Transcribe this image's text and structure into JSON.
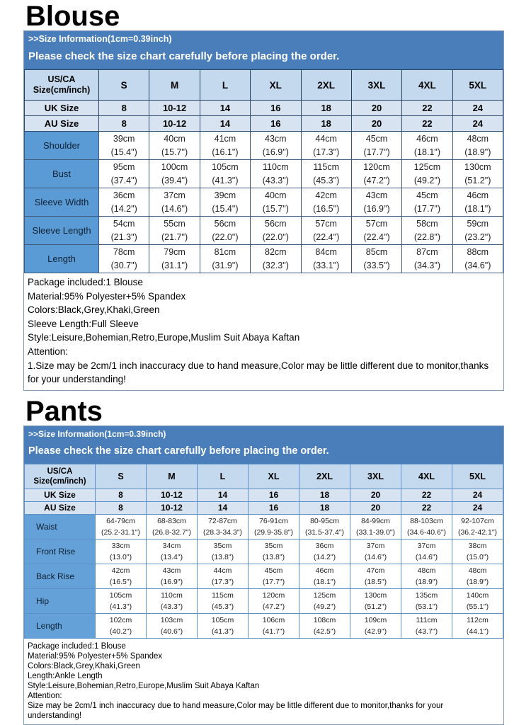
{
  "colors": {
    "banner_bg": "#4a7ebb",
    "banner_text": "#ffffff",
    "header_cell_bg": "#c5d9ee",
    "size_row_bg": "#d7e3f1",
    "label_cell_bg": "#5b9bd5",
    "label_cell_pants_bg": "#63a1d8"
  },
  "sections": [
    {
      "id": "blouse",
      "title": "Blouse",
      "banner": {
        "line1": ">>Size Information(1cm=0.39inch)",
        "line2": "Please check the size chart carefully before placing the order."
      },
      "table": {
        "corner": [
          "US/CA",
          "Size(cm/inch)"
        ],
        "sizes": [
          "S",
          "M",
          "L",
          "XL",
          "2XL",
          "3XL",
          "4XL",
          "5XL"
        ],
        "size_rows": [
          {
            "label": "UK Size",
            "values": [
              "8",
              "10-12",
              "14",
              "16",
              "18",
              "20",
              "22",
              "24"
            ]
          },
          {
            "label": "AU Size",
            "values": [
              "8",
              "10-12",
              "14",
              "16",
              "18",
              "20",
              "22",
              "24"
            ]
          }
        ],
        "measure_rows": [
          {
            "label": "Shoulder",
            "cm": [
              "39cm",
              "40cm",
              "41cm",
              "43cm",
              "44cm",
              "45cm",
              "46cm",
              "48cm"
            ],
            "inch": [
              "(15.4\")",
              "(15.7\")",
              "(16.1\")",
              "(16.9\")",
              "(17.3\")",
              "(17.7\")",
              "(18.1\")",
              "(18.9\")"
            ]
          },
          {
            "label": "Bust",
            "cm": [
              "95cm",
              "100cm",
              "105cm",
              "110cm",
              "115cm",
              "120cm",
              "125cm",
              "130cm"
            ],
            "inch": [
              "(37.4\")",
              "(39.4\")",
              "(41.3\")",
              "(43.3\")",
              "(45.3\")",
              "(47.2\")",
              "(49.2\")",
              "(51.2\")"
            ]
          },
          {
            "label": "Sleeve Width",
            "cm": [
              "36cm",
              "37cm",
              "39cm",
              "40cm",
              "42cm",
              "43cm",
              "45cm",
              "46cm"
            ],
            "inch": [
              "(14.2\")",
              "(14.6\")",
              "(15.4\")",
              "(15.7\")",
              "(16.5\")",
              "(16.9\")",
              "(17.7\")",
              "(18.1\")"
            ]
          },
          {
            "label": "Sleeve Length",
            "cm": [
              "54cm",
              "55cm",
              "56cm",
              "56cm",
              "57cm",
              "57cm",
              "58cm",
              "59cm"
            ],
            "inch": [
              "(21.3\")",
              "(21.7\")",
              "(22.0\")",
              "(22.0\")",
              "(22.4\")",
              "(22.4\")",
              "(22.8\")",
              "(23.2\")"
            ]
          },
          {
            "label": "Length",
            "cm": [
              "78cm",
              "79cm",
              "81cm",
              "82cm",
              "84cm",
              "85cm",
              "87cm",
              "88cm"
            ],
            "inch": [
              "(30.7\")",
              "(31.1\")",
              "(31.9\")",
              "(32.3\")",
              "(33.1\")",
              "(33.5\")",
              "(34.3\")",
              "(34.6\")"
            ]
          }
        ]
      },
      "notes": [
        "Package included:1 Blouse",
        "Material:95% Polyester+5% Spandex",
        "Colors:Black,Grey,Khaki,Green",
        "Sleeve Length:Full Sleeve",
        "Style:Leisure,Bohemian,Retro,Europe,Muslim Suit Abaya Kaftan",
        "Attention:",
        "1.Size may be 2cm/1 inch inaccuracy due to hand measure,Color may be little different due to monitor,thanks for your understanding!"
      ]
    },
    {
      "id": "pants",
      "title": "Pants",
      "banner": {
        "line1": ">>Size Information(1cm=0.39inch)",
        "line2": "Please check the size chart carefully before placing the order."
      },
      "table": {
        "corner": [
          "US/CA",
          "Size(cm/inch)"
        ],
        "sizes": [
          "S",
          "M",
          "L",
          "XL",
          "2XL",
          "3XL",
          "4XL",
          "5XL"
        ],
        "size_rows": [
          {
            "label": "UK Size",
            "values": [
              "8",
              "10-12",
              "14",
              "16",
              "18",
              "20",
              "22",
              "24"
            ]
          },
          {
            "label": "AU Size",
            "values": [
              "8",
              "10-12",
              "14",
              "16",
              "18",
              "20",
              "22",
              "24"
            ]
          }
        ],
        "measure_rows": [
          {
            "label": "Waist",
            "cm": [
              "64-79cm",
              "68-83cm",
              "72-87cm",
              "76-91cm",
              "80-95cm",
              "84-99cm",
              "88-103cm",
              "92-107cm"
            ],
            "inch": [
              "(25.2-31.1\")",
              "(26.8-32.7\")",
              "(28.3-34.3\")",
              "(29.9-35.8\")",
              "(31.5-37.4\")",
              "(33.1-39.0\")",
              "(34.6-40.6\")",
              "(36.2-42.1\")"
            ]
          },
          {
            "label": "Front Rise",
            "cm": [
              "33cm",
              "34cm",
              "35cm",
              "35cm",
              "36cm",
              "37cm",
              "37cm",
              "38cm"
            ],
            "inch": [
              "(13.0\")",
              "(13.4\")",
              "(13.8\")",
              "(13.8\")",
              "(14.2\")",
              "(14.6\")",
              "(14.6\")",
              "(15.0\")"
            ]
          },
          {
            "label": "Back Rise",
            "cm": [
              "42cm",
              "43cm",
              "44cm",
              "45cm",
              "46cm",
              "47cm",
              "48cm",
              "48cm"
            ],
            "inch": [
              "(16.5\")",
              "(16.9\")",
              "(17.3\")",
              "(17.7\")",
              "(18.1\")",
              "(18.5\")",
              "(18.9\")",
              "(18.9\")"
            ]
          },
          {
            "label": "Hip",
            "cm": [
              "105cm",
              "110cm",
              "115cm",
              "120cm",
              "125cm",
              "130cm",
              "135cm",
              "140cm"
            ],
            "inch": [
              "(41.3\")",
              "(43.3\")",
              "(45.3\")",
              "(47.2\")",
              "(49.2\")",
              "(51.2\")",
              "(53.1\")",
              "(55.1\")"
            ]
          },
          {
            "label": "Length",
            "cm": [
              "102cm",
              "103cm",
              "105cm",
              "106cm",
              "108cm",
              "109cm",
              "111cm",
              "112cm"
            ],
            "inch": [
              "(40.2\")",
              "(40.6\")",
              "(41.3\")",
              "(41.7\")",
              "(42.5\")",
              "(42.9\")",
              "(43.7\")",
              "(44.1\")"
            ]
          }
        ]
      },
      "notes": [
        "Package included:1 Blouse",
        "Material:95% Polyester+5% Spandex",
        "Colors:Black,Grey,Khaki,Green",
        "Length:Ankle Length",
        "Style:Leisure,Bohemian,Retro,Europe,Muslim Suit Abaya Kaftan",
        "Attention:",
        "Size may be 2cm/1 inch inaccuracy due to hand measure,Color may be little different due to monitor,thanks for your understanding!"
      ]
    }
  ]
}
